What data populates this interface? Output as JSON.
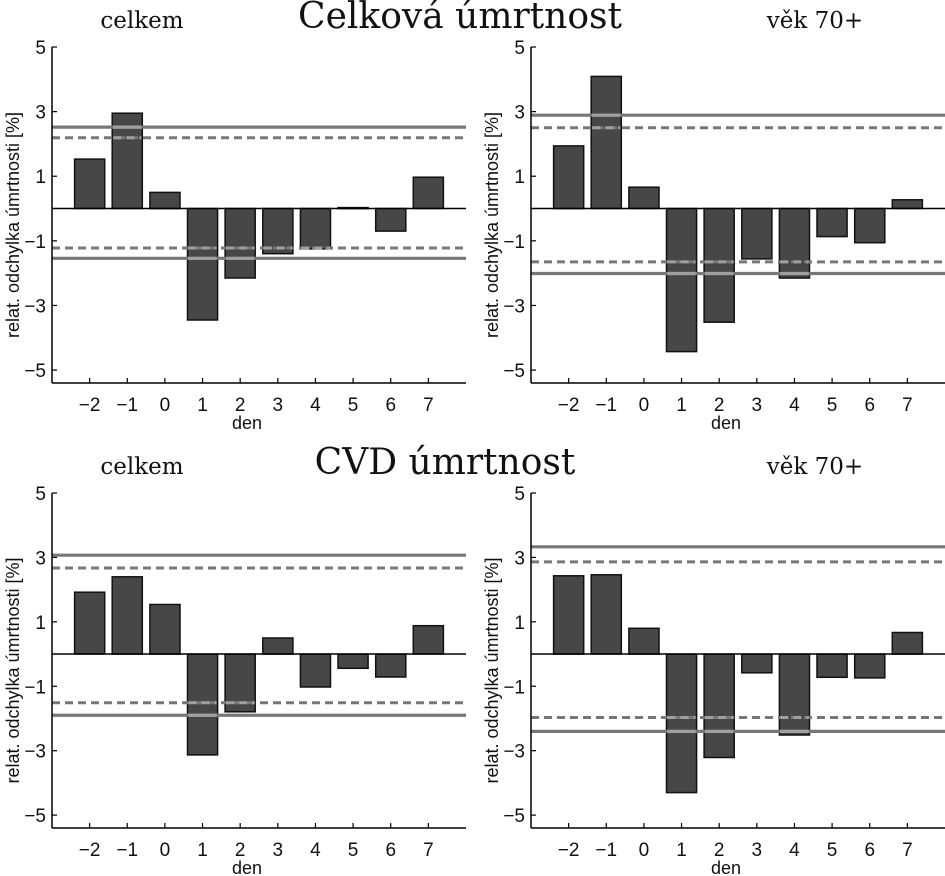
{
  "figure": {
    "row_titles": [
      "Celková úmrtnost",
      "CVD úmrtnost"
    ]
  },
  "chart_data": [
    {
      "type": "bar",
      "row_title": "Celková úmrtnost",
      "title": "celkem",
      "xlabel": "den",
      "ylabel": "relat. odchylka úmrtnosti [%]",
      "categories": [
        "−2",
        "−1",
        "0",
        "1",
        "2",
        "3",
        "4",
        "5",
        "6",
        "7"
      ],
      "x": [
        -2,
        -1,
        0,
        1,
        2,
        3,
        4,
        5,
        6,
        7
      ],
      "values": [
        1.53,
        2.95,
        0.5,
        -3.45,
        -2.15,
        -1.4,
        -1.25,
        0.03,
        -0.7,
        0.97
      ],
      "yticks": [
        5,
        3,
        1,
        -1,
        -3,
        -5
      ],
      "ytick_labels": [
        "5",
        "3",
        "1",
        "−1",
        "−3",
        "−5"
      ],
      "xlim": [
        -3,
        8
      ],
      "ylim": [
        -5.4,
        5
      ],
      "reference_lines": [
        {
          "name": "upper-solid",
          "style": "solid",
          "value": 2.52
        },
        {
          "name": "upper-dashed",
          "style": "dashed",
          "value": 2.19
        },
        {
          "name": "lower-dashed",
          "style": "dashed",
          "value": -1.22
        },
        {
          "name": "lower-solid",
          "style": "solid",
          "value": -1.54
        }
      ],
      "grid": false
    },
    {
      "type": "bar",
      "row_title": "Celková úmrtnost",
      "title": "věk 70+",
      "xlabel": "den",
      "ylabel": "relat. odchylka úmrtnosti [%]",
      "categories": [
        "−2",
        "−1",
        "0",
        "1",
        "2",
        "3",
        "4",
        "5",
        "6",
        "7"
      ],
      "x": [
        -2,
        -1,
        0,
        1,
        2,
        3,
        4,
        5,
        6,
        7
      ],
      "values": [
        1.94,
        4.09,
        0.66,
        -4.43,
        -3.52,
        -1.56,
        -2.15,
        -0.87,
        -1.06,
        0.27
      ],
      "yticks": [
        5,
        3,
        1,
        -1,
        -3,
        -5
      ],
      "ytick_labels": [
        "5",
        "3",
        "1",
        "−1",
        "−3",
        "−5"
      ],
      "xlim": [
        -3,
        8
      ],
      "ylim": [
        -5.4,
        5
      ],
      "reference_lines": [
        {
          "name": "upper-solid",
          "style": "solid",
          "value": 2.89
        },
        {
          "name": "upper-dashed",
          "style": "dashed",
          "value": 2.5
        },
        {
          "name": "lower-dashed",
          "style": "dashed",
          "value": -1.65
        },
        {
          "name": "lower-solid",
          "style": "solid",
          "value": -2.01
        }
      ],
      "grid": false
    },
    {
      "type": "bar",
      "row_title": "CVD úmrtnost",
      "title": "celkem",
      "xlabel": "den",
      "ylabel": "relat. odchylka úmrtnosti [%]",
      "categories": [
        "−2",
        "−1",
        "0",
        "1",
        "2",
        "3",
        "4",
        "5",
        "6",
        "7"
      ],
      "x": [
        -2,
        -1,
        0,
        1,
        2,
        3,
        4,
        5,
        6,
        7
      ],
      "values": [
        1.92,
        2.4,
        1.54,
        -3.13,
        -1.79,
        0.5,
        -1.02,
        -0.44,
        -0.71,
        0.88
      ],
      "yticks": [
        5,
        3,
        1,
        -1,
        -3,
        -5
      ],
      "ytick_labels": [
        "5",
        "3",
        "1",
        "−1",
        "−3",
        "−5"
      ],
      "xlim": [
        -3,
        8
      ],
      "ylim": [
        -5.4,
        5
      ],
      "reference_lines": [
        {
          "name": "upper-solid",
          "style": "solid",
          "value": 3.07
        },
        {
          "name": "upper-dashed",
          "style": "dashed",
          "value": 2.67
        },
        {
          "name": "lower-dashed",
          "style": "dashed",
          "value": -1.51
        },
        {
          "name": "lower-solid",
          "style": "solid",
          "value": -1.9
        }
      ],
      "grid": false
    },
    {
      "type": "bar",
      "row_title": "CVD úmrtnost",
      "title": "věk 70+",
      "xlabel": "den",
      "ylabel": "relat. odchylka úmrtnosti [%]",
      "categories": [
        "−2",
        "−1",
        "0",
        "1",
        "2",
        "3",
        "4",
        "5",
        "6",
        "7"
      ],
      "x": [
        -2,
        -1,
        0,
        1,
        2,
        3,
        4,
        5,
        6,
        7
      ],
      "values": [
        2.43,
        2.46,
        0.8,
        -4.3,
        -3.21,
        -0.58,
        -2.51,
        -0.72,
        -0.74,
        0.67
      ],
      "yticks": [
        5,
        3,
        1,
        -1,
        -3,
        -5
      ],
      "ytick_labels": [
        "5",
        "3",
        "1",
        "−1",
        "−3",
        "−5"
      ],
      "xlim": [
        -3,
        8
      ],
      "ylim": [
        -5.4,
        5
      ],
      "reference_lines": [
        {
          "name": "upper-solid",
          "style": "solid",
          "value": 3.33
        },
        {
          "name": "upper-dashed",
          "style": "dashed",
          "value": 2.86
        },
        {
          "name": "lower-dashed",
          "style": "dashed",
          "value": -1.97
        },
        {
          "name": "lower-solid",
          "style": "solid",
          "value": -2.4
        }
      ],
      "grid": false
    }
  ],
  "colors": {
    "bar_fill": "#474747",
    "bar_edge": "#111111",
    "reference_line": "#777777",
    "reference_line_over_bar": "#a0a0a0",
    "axis": "#000000"
  }
}
